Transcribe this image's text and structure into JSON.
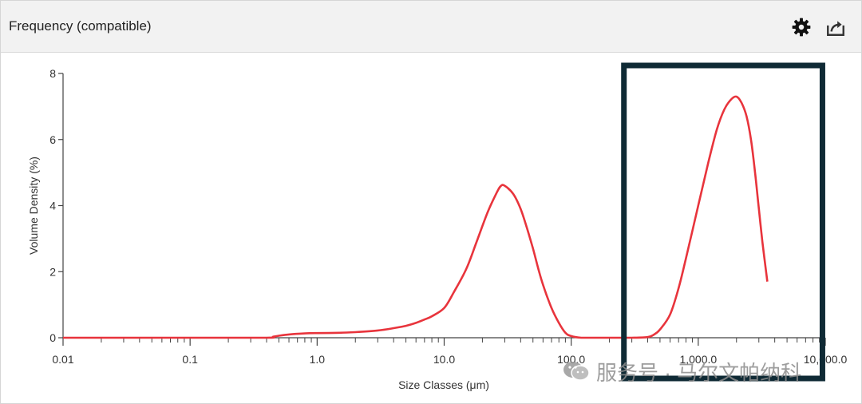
{
  "header": {
    "title": "Frequency (compatible)",
    "settings_icon": "gear-icon",
    "export_icon": "export-icon"
  },
  "watermark": {
    "text": "服务号 · 马尔文帕纳科",
    "icon": "wechat-icon"
  },
  "chart_data": {
    "type": "line",
    "xlabel": "Size Classes (μm)",
    "ylabel": "Volume Density (%)",
    "xscale": "log",
    "xlim": [
      0.01,
      10000
    ],
    "ylim": [
      0,
      8
    ],
    "x_ticks": [
      0.01,
      0.1,
      1,
      10,
      100,
      1000,
      10000
    ],
    "x_tick_labels": [
      "0.01",
      "0.1",
      "1.0",
      "10.0",
      "100.0",
      "1,000.0",
      "10,000.0"
    ],
    "y_ticks": [
      0,
      2,
      4,
      6,
      8
    ],
    "y_tick_labels": [
      "0",
      "2",
      "4",
      "6",
      "8"
    ],
    "grid": false,
    "line_color": "#e8343c",
    "highlight_box_color": "#0f2a35",
    "highlight_range_x": [
      260,
      9500
    ],
    "series": [
      {
        "x": [
          0.01,
          0.1,
          0.4,
          0.45,
          0.5,
          0.6,
          0.8,
          1.0,
          1.5,
          2,
          3,
          4,
          5,
          6,
          7,
          8,
          10,
          12,
          15,
          18,
          22,
          26,
          28,
          30,
          35,
          40,
          45,
          50,
          55,
          60,
          70,
          80,
          90,
          100,
          120,
          150,
          200,
          250,
          300,
          400,
          450,
          500,
          600,
          700,
          800,
          1000,
          1200,
          1400,
          1600,
          1800,
          2000,
          2200,
          2400,
          2600,
          2800,
          3000,
          3200,
          3500
        ],
        "y": [
          0,
          0,
          0,
          0.03,
          0.06,
          0.1,
          0.13,
          0.14,
          0.15,
          0.17,
          0.22,
          0.29,
          0.36,
          0.45,
          0.55,
          0.65,
          0.9,
          1.4,
          2.1,
          2.9,
          3.8,
          4.4,
          4.6,
          4.6,
          4.35,
          3.9,
          3.3,
          2.7,
          2.1,
          1.6,
          0.9,
          0.45,
          0.15,
          0.05,
          0,
          0,
          0,
          0,
          0,
          0.02,
          0.1,
          0.25,
          0.7,
          1.5,
          2.4,
          4.0,
          5.3,
          6.3,
          6.9,
          7.2,
          7.3,
          7.1,
          6.7,
          6.0,
          5.0,
          3.9,
          2.9,
          1.7
        ]
      }
    ]
  }
}
